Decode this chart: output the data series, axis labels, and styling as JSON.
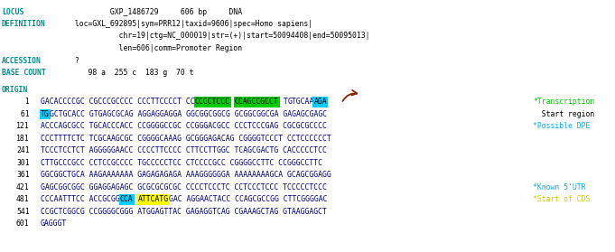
{
  "bg_color": "#ffffff",
  "locus_label": "LOCUS",
  "locus_content": "         GXP_1486729     606 bp     DNA",
  "def_label": "DEFINITION",
  "def_lines": [
    " loc=GXL_692895|sym=PRR12|taxid=9606|spec=Homo sapiens|",
    "           chr=19|ctg=NC_000019|str=(+)|start=50094408|end=50095013|",
    "           len=606|comm=Promoter Region"
  ],
  "acc_label": "ACCESSION",
  "acc_content": " ?",
  "bc_label": "BASE COUNT",
  "bc_content": "    98 a  255 c  183 g  70 t",
  "origin_label": "ORIGIN",
  "teal": "#008B8B",
  "navy": "#000080",
  "black": "#000000",
  "green_bg": "#00cc00",
  "cyan_bg": "#00ccff",
  "yellow_bg": "#ffff00",
  "cyan_text": "#00aaff",
  "green_note": "#00cc00",
  "yellow_note": "#cccc00",
  "arrow_color": "#8B2000",
  "seq_lines": [
    {
      "num": "  1",
      "parts": [
        {
          "text": "GACACCCCGC CGCCCGCCCC CCCTTCCCCT CC",
          "color": "#000080",
          "bg": null
        },
        {
          "text": "CCCCTCCC",
          "color": "#000000",
          "bg": "#00cc00"
        },
        {
          "text": " ",
          "color": "#000080",
          "bg": null
        },
        {
          "text": "CCAGCCGCCT",
          "color": "#000000",
          "bg": "#00cc00"
        },
        {
          "text": " T",
          "color": "#000080",
          "bg": null
        },
        {
          "text": "GTGCAA",
          "color": "#000080",
          "bg": null
        },
        {
          "text": "AGA",
          "color": "#000000",
          "bg": "#00ccff"
        }
      ],
      "note": "*Transcription",
      "note_color": "#00cc00"
    },
    {
      "num": " 61",
      "parts": [
        {
          "text": "TG",
          "color": "#000000",
          "bg": "#00ccff"
        },
        {
          "text": "GCTGCACC GTGAGCGCAG AGGAGGAGGA GGCGGCGGCG GCGGCGGCGA GAGAGCGAGC",
          "color": "#000080",
          "bg": null
        }
      ],
      "note": "  Start region",
      "note_color": "#000000"
    },
    {
      "num": "121",
      "parts": [
        {
          "text": "ACCCAGCGCC TGCACCCACC CCGGGGCCGC CCGGGACGCC CCCTCCCGAG CGCGCGCCCC",
          "color": "#000080",
          "bg": null
        }
      ],
      "note": "*Possible DPE",
      "note_color": "#00aaff"
    },
    {
      "num": "181",
      "parts": [
        {
          "text": "CCCTTTTCTC TCGCAAGCGC CGGGGCAAAG GCGGGAGACAG CGGGGTCCCT CCTCCCCCCT",
          "color": "#000080",
          "bg": null
        }
      ],
      "note": "",
      "note_color": "#000000"
    },
    {
      "num": "241",
      "parts": [
        {
          "text": "TCCCTCCTCT AGGGGGAACC CCCCTTCCCC CTTCCTTGGC TCAGCGACTG CACCCCCTCC",
          "color": "#000080",
          "bg": null
        }
      ],
      "note": "",
      "note_color": "#000000"
    },
    {
      "num": "301",
      "parts": [
        {
          "text": "CTTGCCCGCC CCTCCGCCCC TGCCCCCTCC CTCCCCGCC CGGGGCCTTC CCGGGCCTTC",
          "color": "#000080",
          "bg": null
        }
      ],
      "note": "",
      "note_color": "#000000"
    },
    {
      "num": "361",
      "parts": [
        {
          "text": "GGCGGCTGCA AAGAAAAAAA GAGAGAGAGA AAAGGGGGGA AAAAAAAAGCA GCAGCGGAGG",
          "color": "#000080",
          "bg": null
        }
      ],
      "note": "",
      "note_color": "#000000"
    },
    {
      "num": "421",
      "parts": [
        {
          "text": "GAGCGGCGGC GGAGGAGAGC GCGCGCGCGC CCCCTCCCTC CCTCCCTCCC TCCCCCTCCC",
          "color": "#000080",
          "bg": null
        }
      ],
      "note": "*Known 5'UTR",
      "note_color": "#00aaff"
    },
    {
      "num": "481",
      "parts": [
        {
          "text": "CCCAATTTCC ACCGCGG",
          "color": "#000080",
          "bg": null
        },
        {
          "text": "CCA",
          "color": "#000000",
          "bg": "#00ccff"
        },
        {
          "text": " ",
          "color": "#000080",
          "bg": null
        },
        {
          "text": "ATTCATG",
          "color": "#000000",
          "bg": "#ffff00"
        },
        {
          "text": "GAC AGGAACTACC CCAGCGCCGG CTTCGGGGAC",
          "color": "#000080",
          "bg": null
        }
      ],
      "note": "*Start of CDS",
      "note_color": "#cccc00"
    },
    {
      "num": "541",
      "parts": [
        {
          "text": "CCGCTCGGCG CCGGGGCGGG ATGGAGTTAC GAGAGGTCAG CGAAAGCTAG GTAAGGAGCT",
          "color": "#000080",
          "bg": null
        }
      ],
      "note": "",
      "note_color": "#000000"
    },
    {
      "num": "601",
      "parts": [
        {
          "text": "GAGGGT",
          "color": "#000080",
          "bg": null
        }
      ],
      "note": "",
      "note_color": "#000000"
    }
  ]
}
